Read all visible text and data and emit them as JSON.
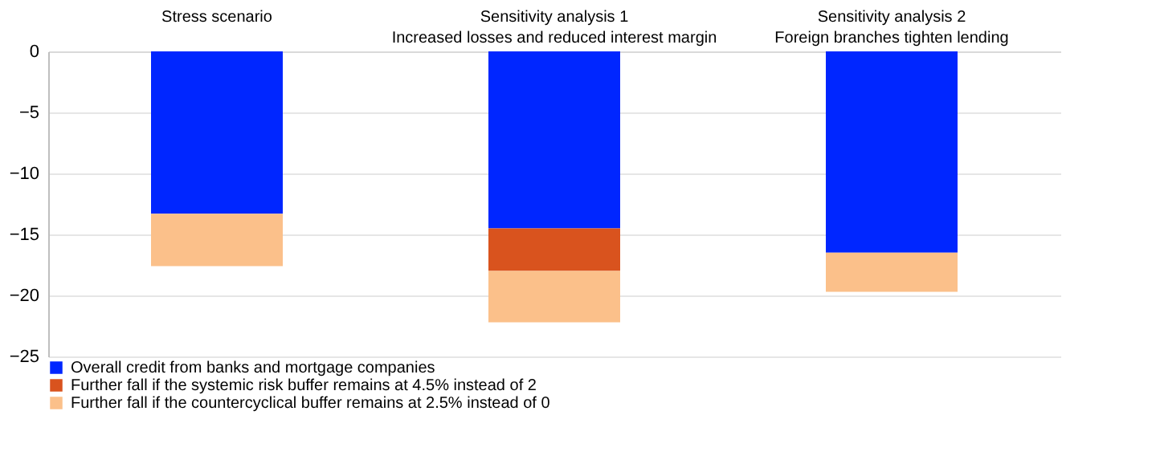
{
  "chart_data": {
    "type": "bar",
    "stacked": true,
    "categories": [
      "Stress scenario",
      "Sensitivity analysis 1\nIncreased losses and reduced interest margin",
      "Sensitivity analysis 2\nForeign branches tighten lending"
    ],
    "series": [
      {
        "name": "Overall credit from banks and mortgage companies",
        "color": "#0026ff",
        "values": [
          -13.3,
          -14.5,
          -16.5
        ]
      },
      {
        "name": "Further fall if the systemic risk buffer remains at 4.5% instead of 2",
        "color": "#d9531e",
        "values": [
          null,
          -3.5,
          null
        ]
      },
      {
        "name": "Further fall if the countercyclical buffer remains at 2.5% instead of 0",
        "color": "#fbc08a",
        "values": [
          -4.3,
          -4.2,
          -3.2
        ]
      }
    ],
    "ylim": [
      -25,
      0
    ],
    "yticks": [
      -25,
      -20,
      -15,
      -10,
      -5,
      0
    ],
    "grid": "y",
    "legend": "bottom"
  }
}
